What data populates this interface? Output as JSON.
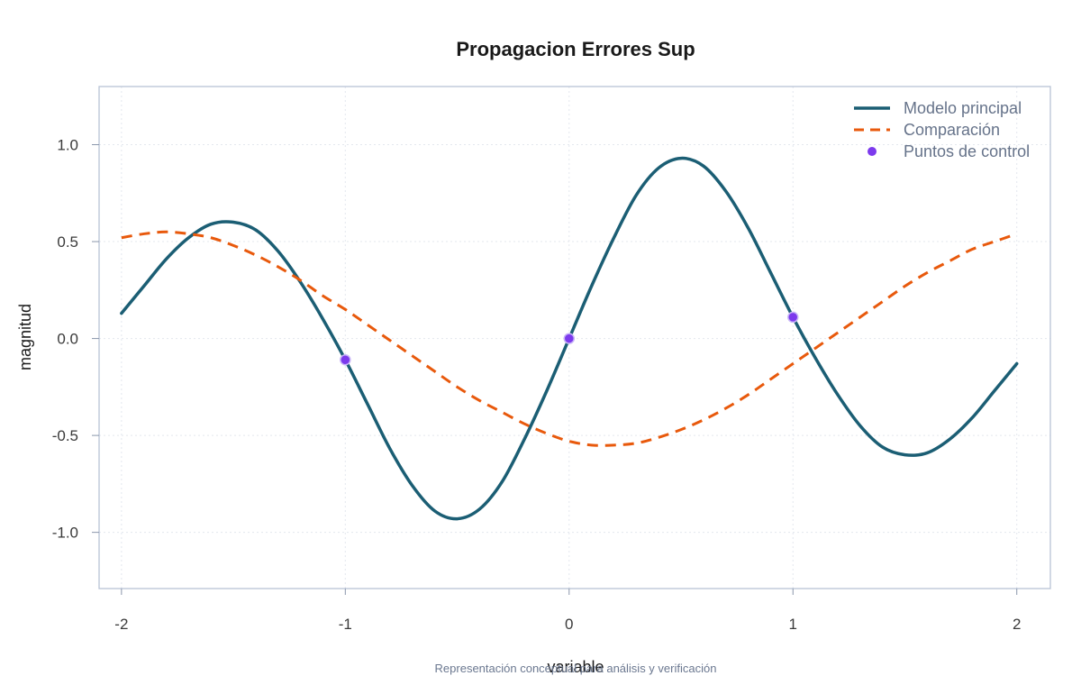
{
  "chart_data": {
    "type": "line",
    "title": "Propagacion Errores Sup",
    "xlabel": "variable",
    "ylabel": "magnitud",
    "caption": "Representación conceptual para análisis y verificación",
    "xlim": [
      -2.1,
      2.15
    ],
    "ylim": [
      -1.29,
      1.3
    ],
    "x_ticks": [
      -2,
      -1,
      0,
      1,
      2
    ],
    "x_tick_labels": [
      "-2",
      "-1",
      "0",
      "1",
      "2"
    ],
    "y_ticks": [
      -1.0,
      -0.5,
      0.0,
      0.5,
      1.0
    ],
    "y_tick_labels": [
      "-1.0",
      "-0.5",
      "0.0",
      "0.5",
      "1.0"
    ],
    "grid": true,
    "legend_position": "top-right",
    "series": [
      {
        "name": "Modelo principal",
        "kind": "line",
        "style": "solid",
        "color": "#1b5e74",
        "x": [
          -2.0,
          -1.9,
          -1.8,
          -1.7,
          -1.6,
          -1.5,
          -1.4,
          -1.3,
          -1.2,
          -1.1,
          -1.0,
          -0.9,
          -0.8,
          -0.7,
          -0.6,
          -0.5,
          -0.4,
          -0.3,
          -0.2,
          -0.1,
          0.0,
          0.1,
          0.2,
          0.3,
          0.4,
          0.5,
          0.6,
          0.7,
          0.8,
          0.9,
          1.0,
          1.1,
          1.2,
          1.3,
          1.4,
          1.5,
          1.6,
          1.7,
          1.8,
          1.9,
          2.0
        ],
        "y": [
          0.13,
          0.27,
          0.41,
          0.52,
          0.59,
          0.6,
          0.56,
          0.45,
          0.29,
          0.1,
          -0.11,
          -0.34,
          -0.57,
          -0.76,
          -0.89,
          -0.93,
          -0.88,
          -0.74,
          -0.52,
          -0.27,
          0.0,
          0.27,
          0.52,
          0.74,
          0.88,
          0.93,
          0.89,
          0.76,
          0.57,
          0.34,
          0.11,
          -0.1,
          -0.29,
          -0.45,
          -0.56,
          -0.6,
          -0.59,
          -0.52,
          -0.41,
          -0.27,
          -0.13
        ]
      },
      {
        "name": "Comparación",
        "kind": "line",
        "style": "dashed",
        "color": "#e8590c",
        "x": [
          -2.0,
          -1.9,
          -1.8,
          -1.7,
          -1.6,
          -1.5,
          -1.4,
          -1.3,
          -1.2,
          -1.1,
          -1.0,
          -0.9,
          -0.8,
          -0.7,
          -0.6,
          -0.5,
          -0.4,
          -0.3,
          -0.2,
          -0.1,
          0.0,
          0.1,
          0.2,
          0.3,
          0.4,
          0.5,
          0.6,
          0.7,
          0.8,
          0.9,
          1.0,
          1.1,
          1.2,
          1.3,
          1.4,
          1.5,
          1.6,
          1.7,
          1.8,
          1.9,
          2.0
        ],
        "y": [
          0.52,
          0.54,
          0.55,
          0.54,
          0.52,
          0.48,
          0.43,
          0.37,
          0.3,
          0.22,
          0.15,
          0.07,
          -0.01,
          -0.09,
          -0.17,
          -0.25,
          -0.32,
          -0.38,
          -0.44,
          -0.49,
          -0.53,
          -0.55,
          -0.55,
          -0.54,
          -0.51,
          -0.47,
          -0.42,
          -0.36,
          -0.29,
          -0.21,
          -0.13,
          -0.05,
          0.03,
          0.11,
          0.19,
          0.27,
          0.34,
          0.4,
          0.46,
          0.5,
          0.54
        ]
      },
      {
        "name": "Puntos de control",
        "kind": "scatter",
        "color": "#7c3aed",
        "x": [
          -1.0,
          0.0,
          1.0
        ],
        "y": [
          -0.11,
          0.0,
          0.11
        ]
      }
    ]
  }
}
